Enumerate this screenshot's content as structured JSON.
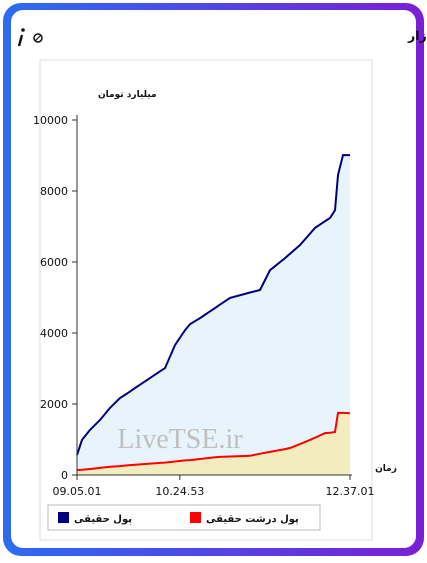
{
  "chart_data": {
    "type": "area",
    "title": "برآیند ورود و خروج پول حقیقی و پول درشت حقیقی به بازار",
    "y_label": "میلیارد تومان",
    "x_label": "زمان",
    "watermark": "LiveTSE.ir",
    "x": [
      "09.05.01",
      "09.08.54",
      "09.15.07",
      "09.22.53",
      "09.30.38",
      "09.38.24",
      "09.46.10",
      "09.50.03",
      "10.01.42",
      "10.09.28",
      "10.13.21",
      "10.21.07",
      "10.28.53",
      "10.32.45",
      "10.40.31",
      "10.52.10",
      "10.56.03",
      "11.03.49",
      "11.15.28",
      "11.19.21",
      "11.27.07",
      "11.34.53",
      "11.46.32",
      "11.50.24",
      "11.58.10",
      "12.05.56",
      "12.09.49",
      "12.17.35",
      "12.21.28",
      "12.25.21",
      "12.27.41",
      "12.31.34",
      "12.37.01"
    ],
    "series": [
      {
        "name": "پول حقیقی",
        "color": "#00007f",
        "fill": "#e8f4fb",
        "values": [
          560,
          990,
          1270,
          1550,
          1890,
          2170,
          2350,
          2450,
          2730,
          2920,
          3010,
          3660,
          4080,
          4250,
          4420,
          4700,
          4800,
          4990,
          5100,
          5140,
          5210,
          5770,
          6110,
          6230,
          6480,
          6800,
          6960,
          7150,
          7240,
          7460,
          8450,
          9010,
          9010
        ]
      },
      {
        "name": "پول درشت حقیقی",
        "color": "#ff0000",
        "fill": "#f3ecbe",
        "values": [
          140,
          150,
          170,
          200,
          230,
          250,
          280,
          290,
          320,
          340,
          350,
          380,
          410,
          420,
          450,
          500,
          510,
          520,
          535,
          540,
          600,
          650,
          730,
          760,
          870,
          990,
          1050,
          1180,
          1190,
          1210,
          1750,
          1750,
          1740
        ]
      }
    ],
    "xlim": [
      "09.05.01",
      "12.37.01"
    ],
    "xticks": [
      "09.05.01",
      "10.24.53",
      "12.37.01"
    ],
    "ylim": [
      0,
      10000
    ],
    "yticks": [
      0,
      2000,
      4000,
      6000,
      8000,
      10000
    ]
  }
}
